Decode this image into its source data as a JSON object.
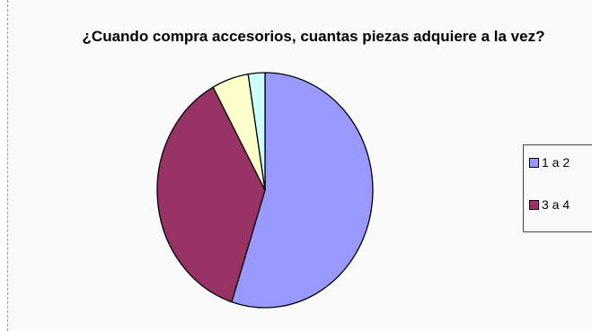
{
  "chart_data": {
    "type": "pie",
    "title": "¿Cuando compra accesorios, cuantas piezas adquiere a la vez?",
    "slices": [
      {
        "label": "1 a 2",
        "value": 55,
        "color": "#9999ff"
      },
      {
        "label": "3 a 4",
        "value": 37,
        "color": "#993366"
      },
      {
        "label": "",
        "value": 5.5,
        "color": "#ffffcc"
      },
      {
        "label": "",
        "value": 2.5,
        "color": "#ccffff"
      }
    ],
    "legend": {
      "placement": "right",
      "entries": [
        {
          "label": "1 a 2",
          "color": "#9999ff"
        },
        {
          "label": "3 a 4",
          "color": "#993366"
        }
      ]
    }
  }
}
